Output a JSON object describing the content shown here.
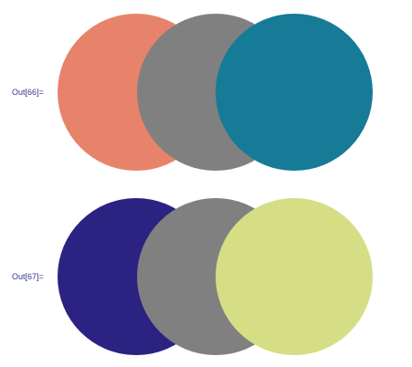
{
  "outputs": [
    {
      "label": "Out[66]=",
      "colors": [
        "#e8836b",
        "#808080",
        "#157b97"
      ]
    },
    {
      "label": "Out[67]=",
      "colors": [
        "#2b2282",
        "#808080",
        "#d5de84"
      ]
    }
  ]
}
